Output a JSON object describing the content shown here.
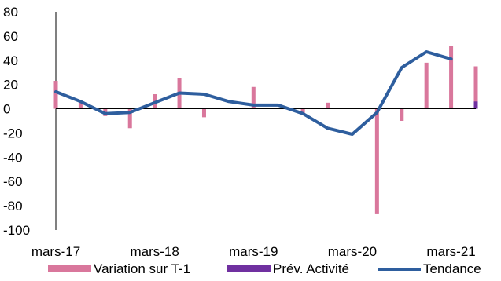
{
  "chart_data": {
    "type": "bar",
    "title": "",
    "xlabel": "",
    "ylabel": "",
    "ylim": [
      -100,
      80
    ],
    "yticks": [
      80,
      60,
      40,
      20,
      0,
      -20,
      -40,
      -60,
      -80,
      -100
    ],
    "x": [
      "2017-Q1",
      "2017-Q2",
      "2017-Q3",
      "2017-Q4",
      "2018-Q1",
      "2018-Q2",
      "2018-Q3",
      "2018-Q4",
      "2019-Q1",
      "2019-Q2",
      "2019-Q3",
      "2019-Q4",
      "2020-Q1",
      "2020-Q2",
      "2020-Q3",
      "2020-Q4",
      "2021-Q1",
      "2021-Q2"
    ],
    "xtick_labels": [
      {
        "x": "2017-Q1",
        "label": "mars-17"
      },
      {
        "x": "2018-Q1",
        "label": "mars-18"
      },
      {
        "x": "2019-Q1",
        "label": "mars-19"
      },
      {
        "x": "2020-Q1",
        "label": "mars-20"
      },
      {
        "x": "2021-Q1",
        "label": "mars-21"
      }
    ],
    "series": [
      {
        "name": "Variation sur T-1",
        "kind": "bar",
        "color": "#d9779c",
        "values": [
          23,
          6,
          -6,
          -16,
          12,
          25,
          -7,
          null,
          18,
          null,
          -4,
          5,
          1,
          -87,
          -10,
          38,
          52,
          35
        ]
      },
      {
        "name": "Prév. Activité",
        "kind": "bar",
        "color": "#7030a0",
        "values": [
          null,
          null,
          null,
          null,
          null,
          null,
          null,
          null,
          null,
          null,
          null,
          null,
          null,
          null,
          null,
          null,
          null,
          6
        ]
      },
      {
        "name": "Tendance",
        "kind": "line",
        "color": "#2e5e9e",
        "values": [
          14,
          6,
          -4,
          -3,
          5,
          13,
          12,
          6,
          3,
          3,
          -4,
          -16,
          -21,
          -3,
          34,
          47,
          41,
          null
        ]
      }
    ],
    "grid": false,
    "legend_position": "bottom"
  }
}
